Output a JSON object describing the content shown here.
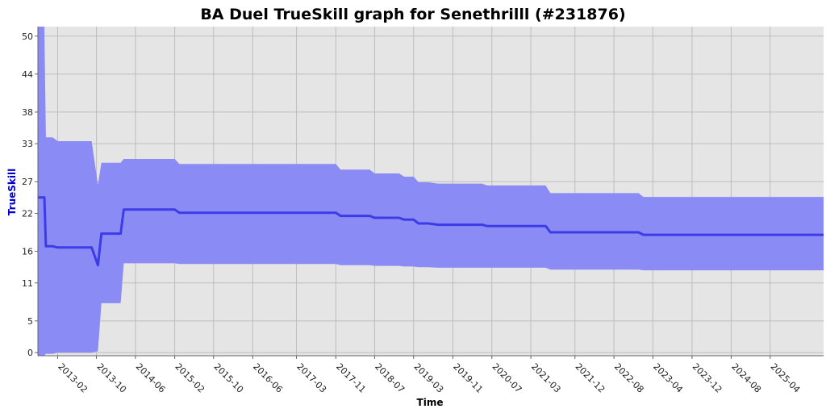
{
  "chart_data": {
    "type": "line",
    "title": "BA Duel TrueSkill graph for Senethrilll (#231876)",
    "xlabel": "Time",
    "ylabel": "TrueSkill",
    "ylim": [
      -0.5,
      51.5
    ],
    "xlim": [
      "2012-10-01",
      "2026-02-28"
    ],
    "y_ticks": [
      0,
      5,
      11,
      16,
      22,
      27,
      33,
      38,
      44,
      50
    ],
    "x_ticks": [
      "2013-02",
      "2013-10",
      "2014-06",
      "2015-02",
      "2015-10",
      "2016-06",
      "2017-03",
      "2017-11",
      "2018-07",
      "2019-03",
      "2019-11",
      "2020-07",
      "2021-03",
      "2021-12",
      "2022-08",
      "2023-04",
      "2023-12",
      "2024-08",
      "2025-04"
    ],
    "grid": true,
    "colors": {
      "background": "#e5e5e5",
      "band": "#8b8bf5",
      "line": "#3c3ce6",
      "grid": "#bdbdbd"
    },
    "series": [
      {
        "x": [
          "2012-10-01",
          "2012-11-10",
          "2012-11-20",
          "2013-01-01",
          "2013-02-01",
          "2013-09-01",
          "2013-10-10",
          "2013-11-01",
          "2014-03-01",
          "2014-03-20",
          "2015-02-01",
          "2015-03-01",
          "2017-11-01",
          "2017-12-01",
          "2018-06-01",
          "2018-07-01",
          "2018-12-01",
          "2019-01-01",
          "2019-03-01",
          "2019-04-01",
          "2019-06-01",
          "2019-08-01",
          "2020-05-01",
          "2020-06-01",
          "2021-06-01",
          "2021-07-01",
          "2023-01-01",
          "2023-02-01",
          "2026-02-28"
        ],
        "values": [
          24.5,
          24.5,
          16.8,
          16.8,
          16.6,
          16.6,
          13.8,
          18.8,
          18.8,
          22.6,
          22.6,
          22.1,
          22.1,
          21.6,
          21.6,
          21.3,
          21.3,
          21.0,
          21.0,
          20.4,
          20.4,
          20.2,
          20.2,
          20.0,
          20.0,
          19.0,
          19.0,
          18.6,
          18.6
        ],
        "upper": [
          51.5,
          51.5,
          34.0,
          34.0,
          33.4,
          33.4,
          26.5,
          30.0,
          30.0,
          30.6,
          30.6,
          29.8,
          29.8,
          28.9,
          28.9,
          28.3,
          28.3,
          27.8,
          27.8,
          26.9,
          26.9,
          26.7,
          26.7,
          26.4,
          26.4,
          25.2,
          25.2,
          24.6,
          24.6
        ],
        "lower": [
          -0.5,
          -0.5,
          -0.2,
          -0.2,
          0.0,
          0.0,
          0.2,
          7.8,
          7.8,
          14.1,
          14.1,
          14.0,
          14.0,
          13.8,
          13.8,
          13.7,
          13.7,
          13.6,
          13.6,
          13.5,
          13.5,
          13.4,
          13.4,
          13.4,
          13.4,
          13.1,
          13.1,
          13.0,
          13.0
        ]
      }
    ]
  }
}
